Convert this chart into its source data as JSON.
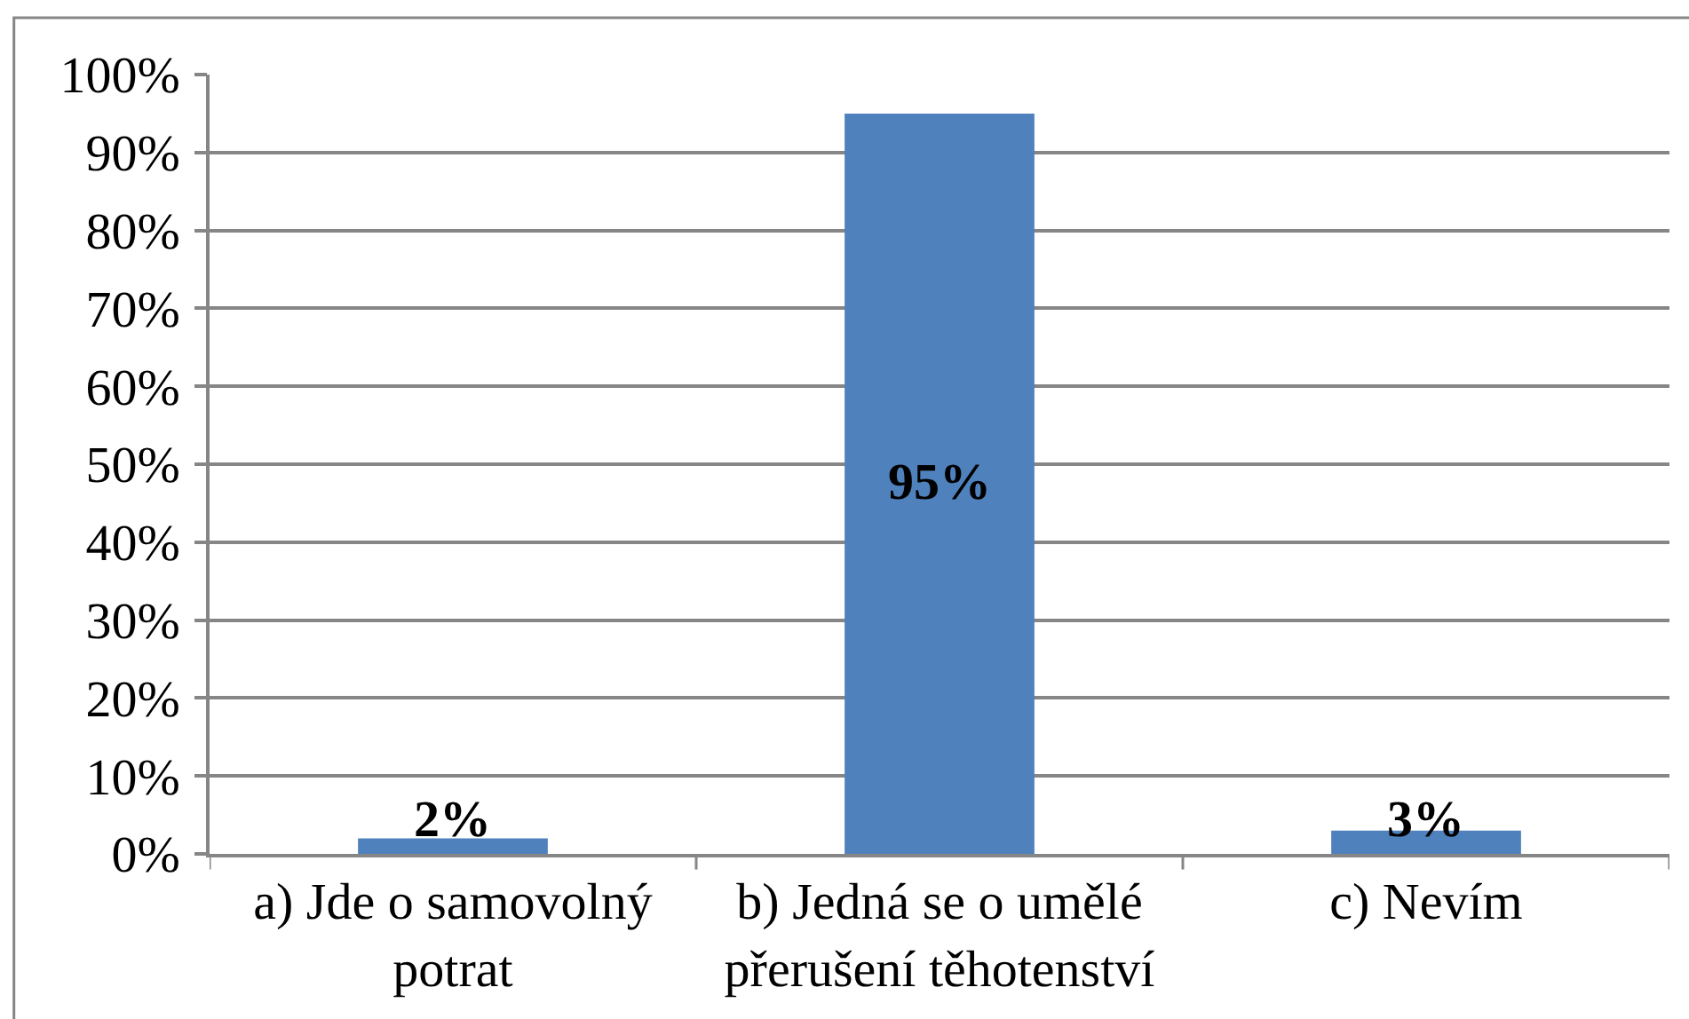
{
  "chart_data": {
    "type": "bar",
    "categories": [
      "a) Jde o samovolný potrat",
      "b) Jedná se o umělé přerušení těhotenství",
      "c) Nevím"
    ],
    "values": [
      2,
      95,
      3
    ],
    "color": "#4f81bd",
    "value_labels": [
      "2%",
      "95%",
      "3%"
    ],
    "ylim": [
      0,
      100
    ],
    "yticks": [
      {
        "value": 0,
        "label": "0%"
      },
      {
        "value": 10,
        "label": "10%"
      },
      {
        "value": 20,
        "label": "20%"
      },
      {
        "value": 30,
        "label": "30%"
      },
      {
        "value": 40,
        "label": "40%"
      },
      {
        "value": 50,
        "label": "50%"
      },
      {
        "value": 60,
        "label": "60%"
      },
      {
        "value": 70,
        "label": "70%"
      },
      {
        "value": 80,
        "label": "80%"
      },
      {
        "value": 90,
        "label": "90%"
      },
      {
        "value": 100,
        "label": "100%"
      }
    ],
    "grid": "y"
  }
}
